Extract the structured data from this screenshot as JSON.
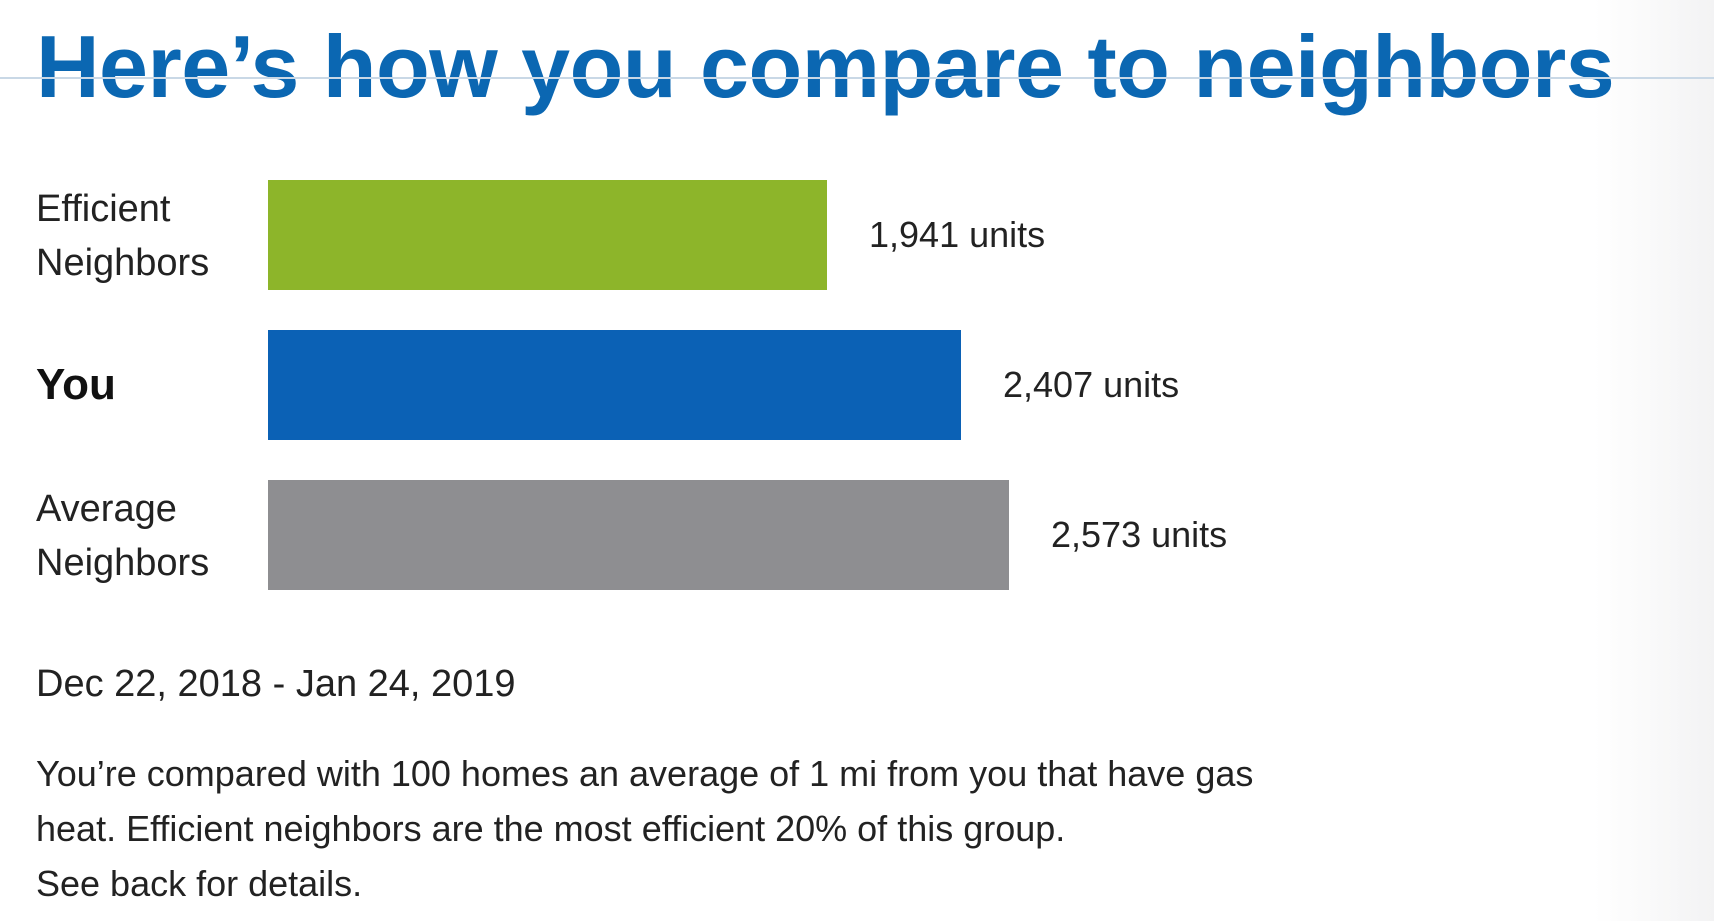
{
  "title": "Here’s how you compare to neighbors",
  "colors": {
    "title": "#0b67b2",
    "efficient": "#8db52a",
    "you": "#0b61b5",
    "average": "#8e8e91"
  },
  "chart_data": {
    "type": "bar",
    "orientation": "horizontal",
    "categories": [
      "Efficient Neighbors",
      "You",
      "Average Neighbors"
    ],
    "category_lines": [
      [
        "Efficient",
        "Neighbors"
      ],
      [
        "You"
      ],
      [
        "Average",
        "Neighbors"
      ]
    ],
    "values": [
      1941,
      2407,
      2573
    ],
    "value_labels": [
      "1,941 units",
      "2,407 units",
      "2,573 units"
    ],
    "unit": "units",
    "title": "Here’s how you compare to neighbors",
    "xlabel": "",
    "ylabel": "",
    "grid": false,
    "legend": "none"
  },
  "period": "Dec 22, 2018 - Jan 24, 2019",
  "note_lines": [
    "You’re compared with 100 homes an average of 1 mi from you that have gas",
    "heat. Efficient neighbors are the most efficient 20% of this group.",
    "See back for details."
  ]
}
